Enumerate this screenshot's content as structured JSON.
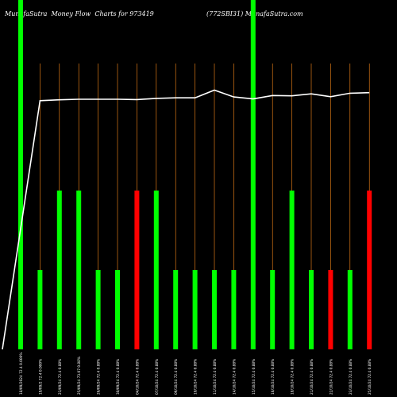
{
  "header": {
    "left_text": "MunafaSutra  Money Flow  Charts for 973419",
    "right_text": "(772SBI31) MunafaSutra.com"
  },
  "colors": {
    "background": "#000000",
    "up_bar": "#00ff00",
    "down_bar": "#ff0000",
    "highlight_column": "#00ff00",
    "divider": "#ff8c1a",
    "price_line": "#ffffff",
    "label": "#ffffff"
  },
  "chart_data": {
    "type": "bar",
    "title": "MunafaSutra  Money Flow  Charts for 973419",
    "grid": false,
    "bar_scale": [
      0,
      5
    ],
    "bars": [
      {
        "date": "18/9/2024",
        "label": "18/09/2024 72.4 0.000%",
        "value": 0,
        "color": "up",
        "highlight": true
      },
      {
        "date": "19/9/2024",
        "label": "19/09/2 72.4 0.000% ",
        "value": 1,
        "color": "up",
        "highlight": false
      },
      {
        "date": "23/9/2024",
        "label": "23/09/24 72.4 0.88% ",
        "value": 2,
        "color": "up",
        "highlight": false
      },
      {
        "date": "25/9/2024",
        "label": "25/09/24 73.07 0.88% ",
        "value": 2,
        "color": "up",
        "highlight": false
      },
      {
        "date": "26/9/2024",
        "label": "26/09/24 72.4 0.88% ",
        "value": 1,
        "color": "up",
        "highlight": false
      },
      {
        "date": "30/9/2024",
        "label": "30/09/24 72.4 0.88% ",
        "value": 1,
        "color": "up",
        "highlight": false
      },
      {
        "date": "4/10/2024",
        "label": "04/10/24 72.4 0.88% ",
        "value": 2,
        "color": "down",
        "highlight": false
      },
      {
        "date": "7/10/2024",
        "label": "07/10/24 72.4 0.88% ",
        "value": 2,
        "color": "up",
        "highlight": false
      },
      {
        "date": "9/10/2024",
        "label": "09/10/24 72.4 0.88% ",
        "value": 1,
        "color": "up",
        "highlight": false
      },
      {
        "date": "10/10/2024",
        "label": "10/10/24 72.4 0.88% ",
        "value": 1,
        "color": "up",
        "highlight": false
      },
      {
        "date": "11/10/2024",
        "label": "11/10/24 72.4 0.88% ",
        "value": 1,
        "color": "up",
        "highlight": false
      },
      {
        "date": "14/10/2024",
        "label": "14/10/24 72.4 0.88% ",
        "value": 1,
        "color": "up",
        "highlight": false
      },
      {
        "date": "15/10/2024",
        "label": "15/10/24 72.4 0.88% ",
        "value": 0,
        "color": "up",
        "highlight": true
      },
      {
        "date": "16/10/2024",
        "label": "16/10/24 72.4 0.88% ",
        "value": 1,
        "color": "up",
        "highlight": false
      },
      {
        "date": "18/10/2024",
        "label": "18/10/24 72.4 0.88% ",
        "value": 2,
        "color": "up",
        "highlight": false
      },
      {
        "date": "21/10/2024",
        "label": "21/10/24 72.4 0.88% ",
        "value": 1,
        "color": "up",
        "highlight": false
      },
      {
        "date": "22/10/2024",
        "label": "22/10/24 72.4 0.88% ",
        "value": 1,
        "color": "down",
        "highlight": false
      },
      {
        "date": "23/10/2024",
        "label": "23/10/24 72.4 0.88% ",
        "value": 1,
        "color": "up",
        "highlight": false
      },
      {
        "date": "25/10/2024",
        "label": "25/10/24 72.4 0.88% ",
        "value": 2,
        "color": "down",
        "highlight": false
      }
    ],
    "price_line": {
      "ylim": [
        0,
        100
      ],
      "values": [
        0,
        87,
        87.3,
        87.5,
        87.5,
        87.5,
        87.4,
        87.8,
        88,
        88,
        90.7,
        88.3,
        87.6,
        88.8,
        88.7,
        89.4,
        88.4,
        89.6,
        89.8
      ]
    }
  }
}
